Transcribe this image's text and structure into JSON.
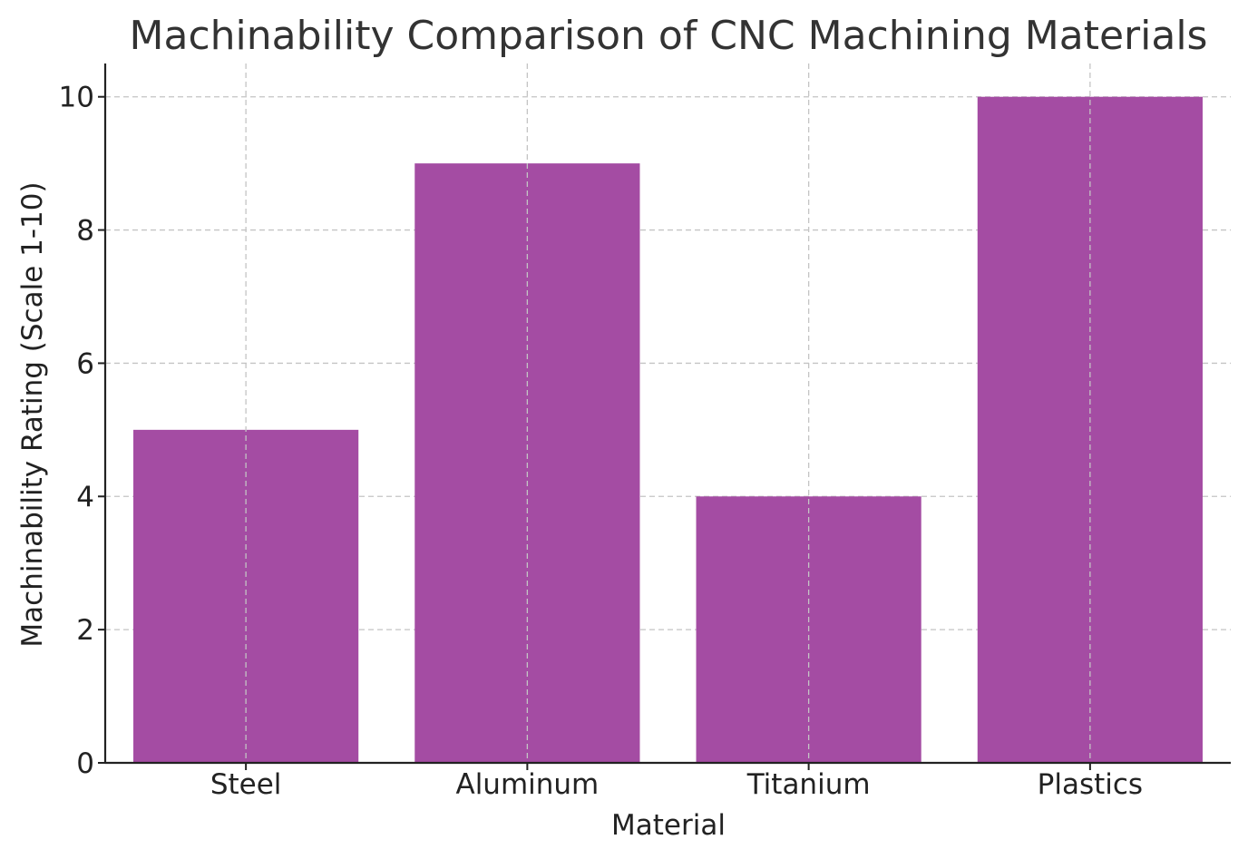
{
  "chart_data": {
    "type": "bar",
    "title": "Machinability Comparison of CNC Machining Materials",
    "xlabel": "Material",
    "ylabel": "Machinability Rating (Scale 1-10)",
    "categories": [
      "Steel",
      "Aluminum",
      "Titanium",
      "Plastics"
    ],
    "values": [
      5,
      9,
      4,
      10
    ],
    "ylim": [
      0,
      10.5
    ],
    "yticks": [
      0,
      2,
      4,
      6,
      8,
      10
    ],
    "grid": true,
    "bar_color": "#a44ca3"
  }
}
